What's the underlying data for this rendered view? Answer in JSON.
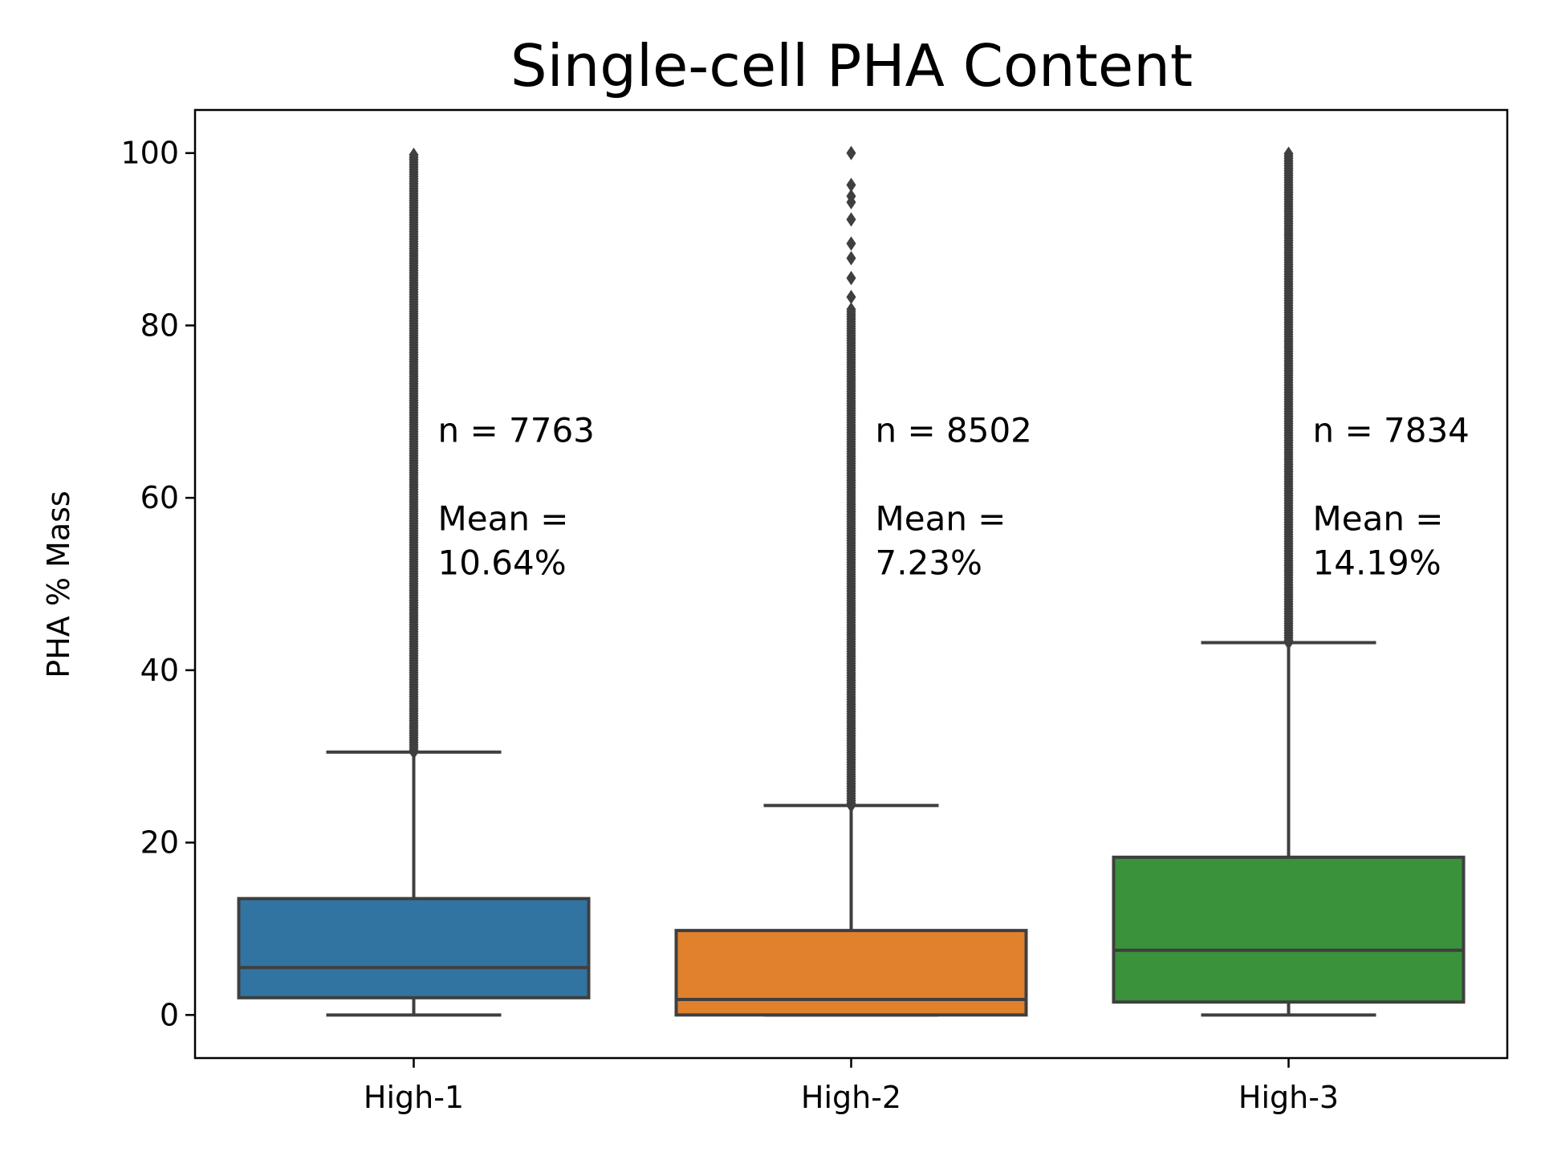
{
  "chart_data": {
    "type": "box",
    "title": "Single-cell PHA Content",
    "xlabel": "",
    "ylabel": "PHA % Mass",
    "ylim": [
      -5,
      105
    ],
    "yticks": [
      0,
      20,
      40,
      60,
      80,
      100
    ],
    "grid": false,
    "legend": "none",
    "categories": [
      "High-1",
      "High-2",
      "High-3"
    ],
    "boxes": [
      {
        "category": "High-1",
        "color": "#3274a1",
        "whisker_low": 0,
        "q1": 2.0,
        "median": 5.5,
        "q3": 13.5,
        "whisker_high": 30.5,
        "outliers_from": 30.5,
        "outliers_to": 100,
        "outliers": [],
        "annotation": [
          "n = 7763",
          "",
          "Mean =",
          " 10.64%"
        ]
      },
      {
        "category": "High-2",
        "color": "#e1812c",
        "whisker_low": 0,
        "q1": 0,
        "median": 1.8,
        "q3": 9.8,
        "whisker_high": 24.3,
        "outliers_from": 24.3,
        "outliers_to": 82,
        "outliers": [
          83.3,
          85.5,
          87.8,
          89.5,
          92.3,
          94.3,
          95.0,
          96.3,
          100.0
        ],
        "annotation": [
          "n = 8502",
          "",
          "Mean =",
          " 7.23%"
        ]
      },
      {
        "category": "High-3",
        "color": "#3a923a",
        "whisker_low": 0,
        "q1": 1.5,
        "median": 7.5,
        "q3": 18.3,
        "whisker_high": 43.2,
        "outliers_from": 43.2,
        "outliers_to": 100,
        "outliers": [],
        "annotation": [
          "n = 7834",
          "",
          "Mean =",
          " 14.19%"
        ]
      }
    ],
    "colors": {
      "edge": "#3f3f3f",
      "axis": "#000000"
    }
  }
}
